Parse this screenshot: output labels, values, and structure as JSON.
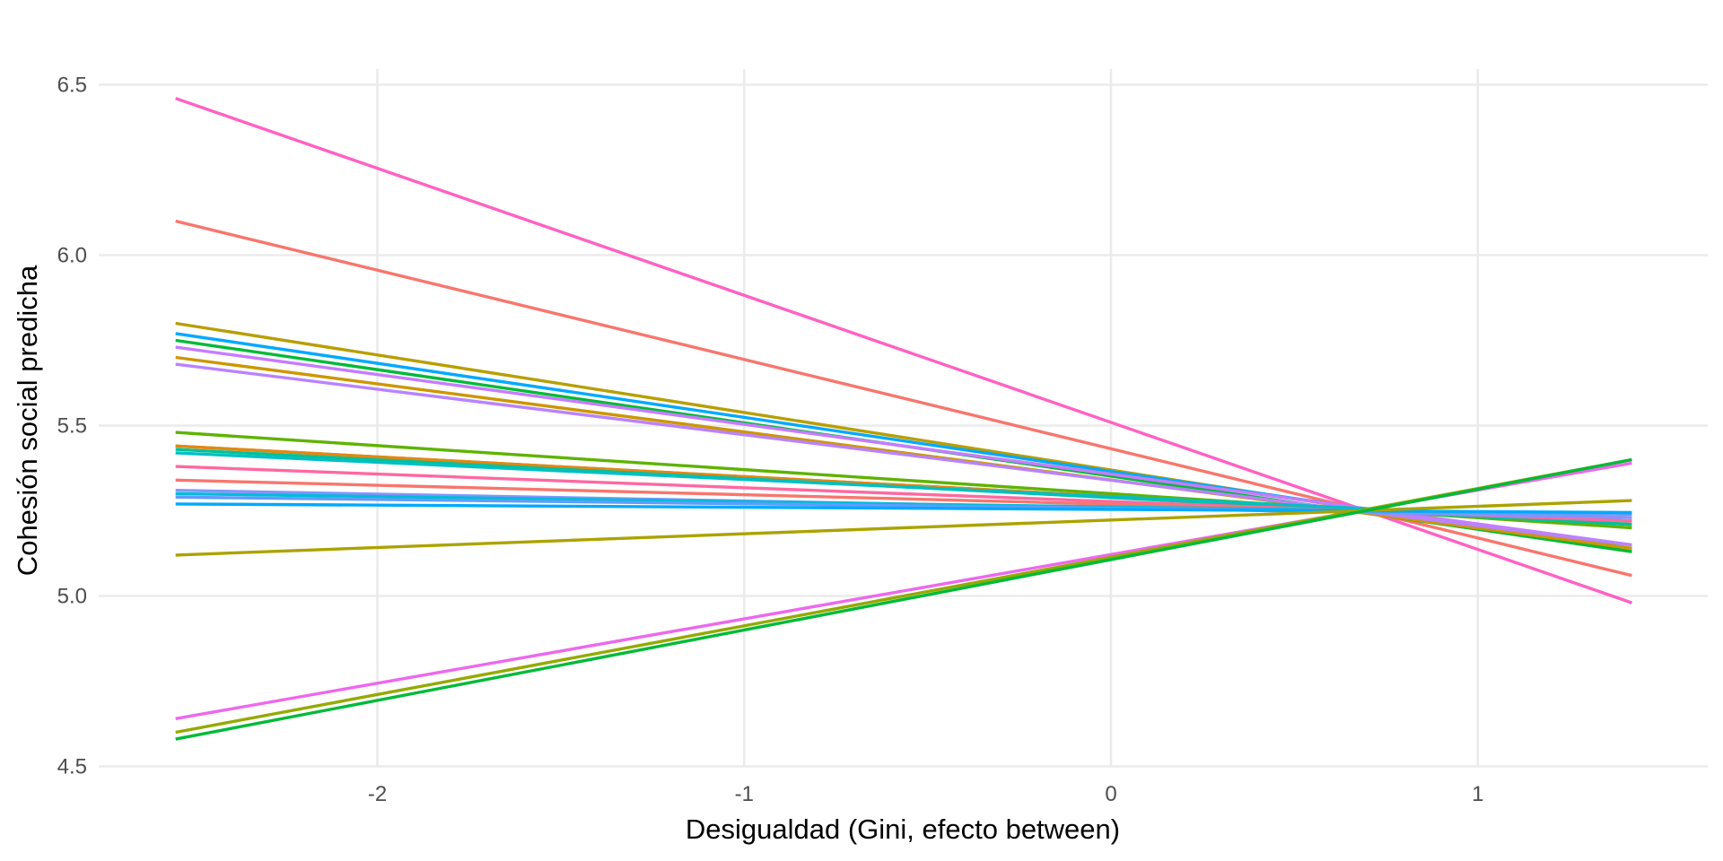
{
  "chart_data": {
    "type": "line",
    "title": "",
    "xlabel": "Desigualdad (Gini, efecto between)",
    "ylabel": "Cohesión social predicha",
    "xlim": [
      -2.75,
      1.63
    ],
    "ylim": [
      4.45,
      6.55
    ],
    "x_ticks": [
      {
        "value": -2,
        "label": "-2"
      },
      {
        "value": -1,
        "label": "-1"
      },
      {
        "value": 0,
        "label": "0"
      },
      {
        "value": 1,
        "label": "1"
      }
    ],
    "y_ticks": [
      {
        "value": 4.5,
        "label": "4.5"
      },
      {
        "value": 5.0,
        "label": "5.0"
      },
      {
        "value": 5.5,
        "label": "5.5"
      },
      {
        "value": 6.0,
        "label": "6.0"
      },
      {
        "value": 6.5,
        "label": "6.5"
      }
    ],
    "grid": true,
    "legend": "none",
    "x_range": [
      -2.55,
      1.42
    ],
    "series": [
      {
        "color": "#ff61c3",
        "values": [
          6.46,
          4.98
        ]
      },
      {
        "color": "#f8766d",
        "values": [
          6.1,
          5.06
        ]
      },
      {
        "color": "#b79f00",
        "values": [
          5.8,
          5.13
        ]
      },
      {
        "color": "#00a9ff",
        "values": [
          5.77,
          5.14
        ]
      },
      {
        "color": "#00ba38",
        "values": [
          5.75,
          5.13
        ]
      },
      {
        "color": "#c77cff",
        "values": [
          5.73,
          5.15
        ]
      },
      {
        "color": "#cd9600",
        "values": [
          5.7,
          5.14
        ]
      },
      {
        "color": "#b983ff",
        "values": [
          5.68,
          5.15
        ]
      },
      {
        "color": "#5eb300",
        "values": [
          5.48,
          5.2
        ]
      },
      {
        "color": "#7cae00",
        "values": [
          5.44,
          5.21
        ]
      },
      {
        "color": "#e68613",
        "values": [
          5.44,
          5.21
        ]
      },
      {
        "color": "#00c19a",
        "values": [
          5.43,
          5.21
        ]
      },
      {
        "color": "#00bfc4",
        "values": [
          5.42,
          5.22
        ]
      },
      {
        "color": "#ff68a1",
        "values": [
          5.38,
          5.22
        ]
      },
      {
        "color": "#f8766d",
        "values": [
          5.34,
          5.23
        ]
      },
      {
        "color": "#8494ff",
        "values": [
          5.31,
          5.23
        ]
      },
      {
        "color": "#00bcd8",
        "values": [
          5.3,
          5.24
        ]
      },
      {
        "color": "#619cff",
        "values": [
          5.29,
          5.24
        ]
      },
      {
        "color": "#00a9ff",
        "values": [
          5.27,
          5.245
        ]
      },
      {
        "color": "#aba300",
        "values": [
          5.12,
          5.28
        ]
      },
      {
        "color": "#ed68ed",
        "values": [
          4.64,
          5.39
        ]
      },
      {
        "color": "#93aa00",
        "values": [
          4.6,
          5.4
        ]
      },
      {
        "color": "#00ba38",
        "values": [
          4.58,
          5.4
        ]
      }
    ]
  }
}
